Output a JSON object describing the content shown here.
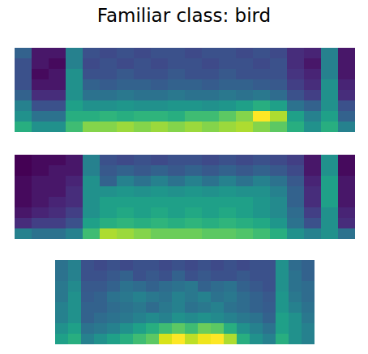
{
  "chart_data": [
    {
      "type": "heatmap",
      "title": "Familiar class: bird",
      "tick_labels": false,
      "cells": [
        [
          0.35,
          0.15,
          0.15,
          0.45,
          0.3,
          0.28,
          0.3,
          0.28,
          0.3,
          0.3,
          0.28,
          0.3,
          0.3,
          0.28,
          0.3,
          0.28,
          0.2,
          0.18,
          0.45,
          0.15
        ],
        [
          0.3,
          0.15,
          0.12,
          0.45,
          0.28,
          0.3,
          0.28,
          0.3,
          0.28,
          0.3,
          0.3,
          0.28,
          0.3,
          0.3,
          0.28,
          0.3,
          0.2,
          0.15,
          0.45,
          0.15
        ],
        [
          0.3,
          0.12,
          0.15,
          0.5,
          0.3,
          0.3,
          0.32,
          0.3,
          0.3,
          0.32,
          0.3,
          0.3,
          0.32,
          0.3,
          0.3,
          0.3,
          0.22,
          0.18,
          0.45,
          0.15
        ],
        [
          0.3,
          0.15,
          0.15,
          0.5,
          0.35,
          0.33,
          0.35,
          0.35,
          0.33,
          0.35,
          0.35,
          0.33,
          0.35,
          0.35,
          0.33,
          0.32,
          0.25,
          0.2,
          0.5,
          0.18
        ],
        [
          0.35,
          0.2,
          0.2,
          0.5,
          0.4,
          0.4,
          0.42,
          0.4,
          0.4,
          0.42,
          0.4,
          0.4,
          0.42,
          0.4,
          0.42,
          0.38,
          0.3,
          0.25,
          0.5,
          0.2
        ],
        [
          0.45,
          0.3,
          0.3,
          0.55,
          0.5,
          0.5,
          0.52,
          0.5,
          0.5,
          0.52,
          0.52,
          0.5,
          0.52,
          0.55,
          0.6,
          0.55,
          0.4,
          0.35,
          0.5,
          0.3
        ],
        [
          0.5,
          0.4,
          0.4,
          0.6,
          0.6,
          0.62,
          0.6,
          0.62,
          0.62,
          0.6,
          0.65,
          0.65,
          0.7,
          0.75,
          0.9,
          0.8,
          0.55,
          0.45,
          0.55,
          0.35
        ],
        [
          0.6,
          0.5,
          0.5,
          0.65,
          0.75,
          0.75,
          0.78,
          0.75,
          0.78,
          0.75,
          0.78,
          0.75,
          0.78,
          0.8,
          0.75,
          0.7,
          0.6,
          0.5,
          0.6,
          0.45
        ]
      ]
    },
    {
      "type": "heatmap",
      "tick_labels": false,
      "cells": [
        [
          0.1,
          0.12,
          0.12,
          0.15,
          0.45,
          0.3,
          0.28,
          0.3,
          0.28,
          0.3,
          0.3,
          0.28,
          0.3,
          0.28,
          0.3,
          0.28,
          0.25,
          0.15,
          0.5,
          0.12
        ],
        [
          0.1,
          0.12,
          0.15,
          0.15,
          0.45,
          0.32,
          0.35,
          0.32,
          0.35,
          0.32,
          0.35,
          0.32,
          0.35,
          0.32,
          0.35,
          0.32,
          0.28,
          0.15,
          0.5,
          0.12
        ],
        [
          0.12,
          0.15,
          0.15,
          0.18,
          0.5,
          0.35,
          0.45,
          0.4,
          0.45,
          0.4,
          0.45,
          0.4,
          0.45,
          0.4,
          0.45,
          0.4,
          0.32,
          0.18,
          0.55,
          0.15
        ],
        [
          0.12,
          0.15,
          0.15,
          0.2,
          0.5,
          0.5,
          0.52,
          0.5,
          0.52,
          0.5,
          0.52,
          0.5,
          0.52,
          0.5,
          0.5,
          0.45,
          0.35,
          0.2,
          0.55,
          0.15
        ],
        [
          0.12,
          0.15,
          0.18,
          0.2,
          0.5,
          0.55,
          0.55,
          0.55,
          0.55,
          0.55,
          0.55,
          0.55,
          0.55,
          0.55,
          0.52,
          0.48,
          0.35,
          0.2,
          0.55,
          0.15
        ],
        [
          0.15,
          0.18,
          0.2,
          0.25,
          0.5,
          0.55,
          0.58,
          0.55,
          0.58,
          0.55,
          0.58,
          0.55,
          0.58,
          0.55,
          0.52,
          0.48,
          0.38,
          0.25,
          0.5,
          0.18
        ],
        [
          0.2,
          0.25,
          0.25,
          0.3,
          0.55,
          0.6,
          0.62,
          0.6,
          0.62,
          0.6,
          0.62,
          0.6,
          0.62,
          0.6,
          0.58,
          0.52,
          0.4,
          0.3,
          0.5,
          0.2
        ],
        [
          0.45,
          0.4,
          0.4,
          0.45,
          0.65,
          0.8,
          0.78,
          0.75,
          0.72,
          0.72,
          0.72,
          0.7,
          0.7,
          0.68,
          0.65,
          0.6,
          0.5,
          0.45,
          0.5,
          0.4
        ]
      ]
    },
    {
      "type": "heatmap",
      "tick_labels": false,
      "cells": [
        [
          0.4,
          0.45,
          0.3,
          0.28,
          0.3,
          0.28,
          0.3,
          0.3,
          0.28,
          0.3,
          0.28,
          0.3,
          0.28,
          0.3,
          0.28,
          0.3,
          0.3,
          0.5,
          0.38,
          0.35
        ],
        [
          0.4,
          0.45,
          0.3,
          0.3,
          0.32,
          0.35,
          0.3,
          0.32,
          0.3,
          0.35,
          0.3,
          0.32,
          0.3,
          0.3,
          0.32,
          0.3,
          0.3,
          0.5,
          0.4,
          0.35
        ],
        [
          0.42,
          0.48,
          0.32,
          0.32,
          0.35,
          0.4,
          0.38,
          0.35,
          0.38,
          0.4,
          0.42,
          0.35,
          0.38,
          0.4,
          0.35,
          0.32,
          0.3,
          0.5,
          0.4,
          0.38
        ],
        [
          0.42,
          0.5,
          0.33,
          0.35,
          0.4,
          0.42,
          0.45,
          0.42,
          0.4,
          0.45,
          0.42,
          0.45,
          0.4,
          0.42,
          0.38,
          0.35,
          0.32,
          0.52,
          0.42,
          0.38
        ],
        [
          0.45,
          0.5,
          0.35,
          0.35,
          0.38,
          0.4,
          0.42,
          0.38,
          0.42,
          0.45,
          0.4,
          0.42,
          0.45,
          0.4,
          0.38,
          0.35,
          0.33,
          0.52,
          0.45,
          0.4
        ],
        [
          0.45,
          0.5,
          0.35,
          0.38,
          0.4,
          0.42,
          0.45,
          0.48,
          0.45,
          0.5,
          0.48,
          0.5,
          0.48,
          0.45,
          0.42,
          0.4,
          0.35,
          0.55,
          0.5,
          0.42
        ],
        [
          0.5,
          0.55,
          0.4,
          0.42,
          0.45,
          0.5,
          0.55,
          0.6,
          0.65,
          0.7,
          0.65,
          0.72,
          0.7,
          0.6,
          0.5,
          0.45,
          0.4,
          0.55,
          0.5,
          0.45
        ],
        [
          0.55,
          0.6,
          0.45,
          0.5,
          0.55,
          0.6,
          0.65,
          0.7,
          0.85,
          0.9,
          0.82,
          0.88,
          0.9,
          0.8,
          0.6,
          0.5,
          0.45,
          0.6,
          0.5,
          0.45
        ]
      ]
    }
  ]
}
